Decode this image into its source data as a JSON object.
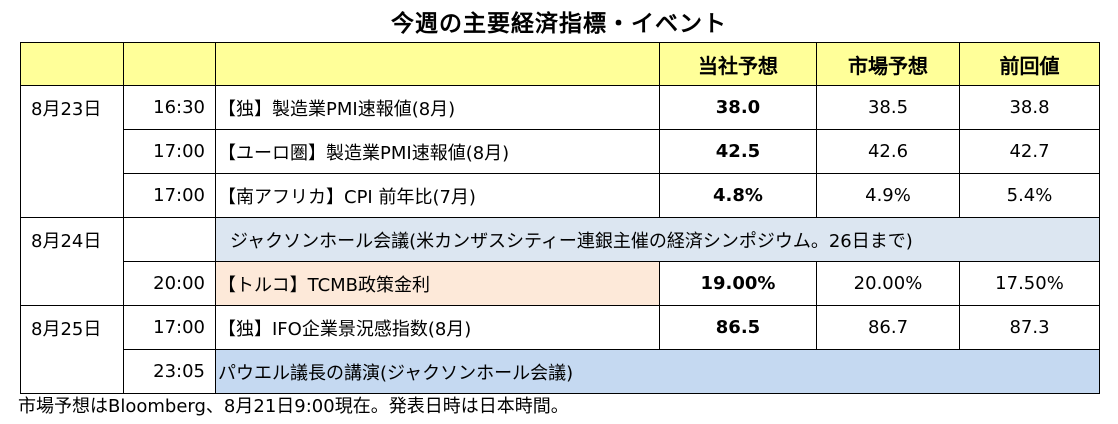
{
  "title": "今週の主要経済指標・イベント",
  "colors": {
    "header_bg": "#ffff99",
    "event_bg": "#dce6f1",
    "highlight_bg": "#fde9d9"
  },
  "headers": {
    "own_forecast": "当社予想",
    "market_forecast": "市場予想",
    "previous": "前回値"
  },
  "rows": [
    {
      "date": "8月23日",
      "time": "16:30",
      "name": "【独】製造業PMI速報値(8月)",
      "own": "38.0",
      "market": "38.5",
      "prev": "38.8"
    },
    {
      "date": "",
      "time": "17:00",
      "name": "【ユーロ圏】製造業PMI速報値(8月)",
      "own": "42.5",
      "market": "42.6",
      "prev": "42.7"
    },
    {
      "date": "",
      "time": "17:00",
      "name": "【南アフリカ】CPI 前年比(7月)",
      "own": "4.8%",
      "market": "4.9%",
      "prev": "5.4%"
    },
    {
      "date": "8月24日",
      "time": "",
      "event": "ジャクソンホール会議(米カンザスシティー連銀主催の経済シンポジウム。26日まで)"
    },
    {
      "date": "",
      "time": "20:00",
      "name": "【トルコ】TCMB政策金利",
      "own": "19.00%",
      "market": "20.00%",
      "prev": "17.50%"
    },
    {
      "date": "8月25日",
      "time": "17:00",
      "name": "【独】IFO企業景況感指数(8月)",
      "own": "86.5",
      "market": "86.7",
      "prev": "87.3"
    },
    {
      "date": "",
      "time": "23:05",
      "event": "パウエル議長の講演(ジャクソンホール会議)"
    }
  ],
  "footnote": "市場予想はBloomberg、8月21日9:00現在。発表日時は日本時間。"
}
